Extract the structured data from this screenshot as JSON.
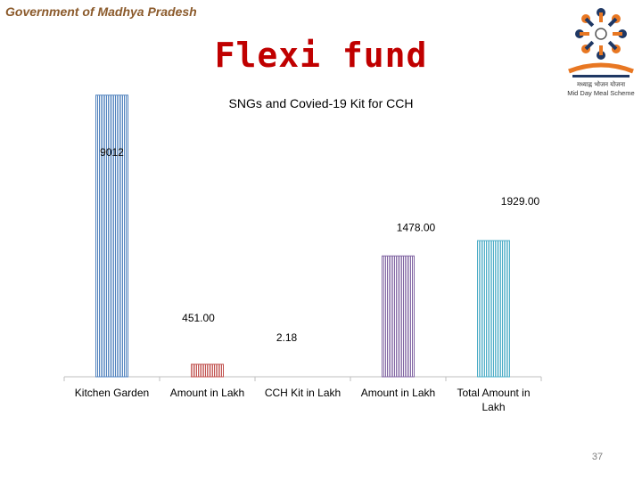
{
  "header": {
    "org": "Government of Madhya Pradesh",
    "title": "Flexi fund"
  },
  "logo": {
    "caption_hindi": "मध्याह्न भोजन योजना",
    "caption_english": "Mid Day Meal Scheme",
    "colors": {
      "orange": "#E87722",
      "navy": "#1F3864",
      "grey": "#555555"
    }
  },
  "page_number": "37",
  "chart_data": {
    "type": "bar",
    "title": "SNGs and Covied-19 Kit  for CCH",
    "categories": [
      [
        "Kitchen Garden"
      ],
      [
        "Amount in Lakh"
      ],
      [
        "CCH  Kit in Lakh"
      ],
      [
        "Amount in Lakh"
      ],
      [
        "Total Amount in",
        "Lakh"
      ]
    ],
    "values": [
      9012,
      451.0,
      2.18,
      1478.0,
      1929.0
    ],
    "data_labels": [
      "9012",
      "451.00",
      "2.18",
      "1478.00",
      "1929.00"
    ],
    "colors": [
      "#4F81BD",
      "#C0504D",
      "#9BBB59",
      "#8064A2",
      "#4BACC6"
    ],
    "grid": false,
    "legend": "none"
  }
}
